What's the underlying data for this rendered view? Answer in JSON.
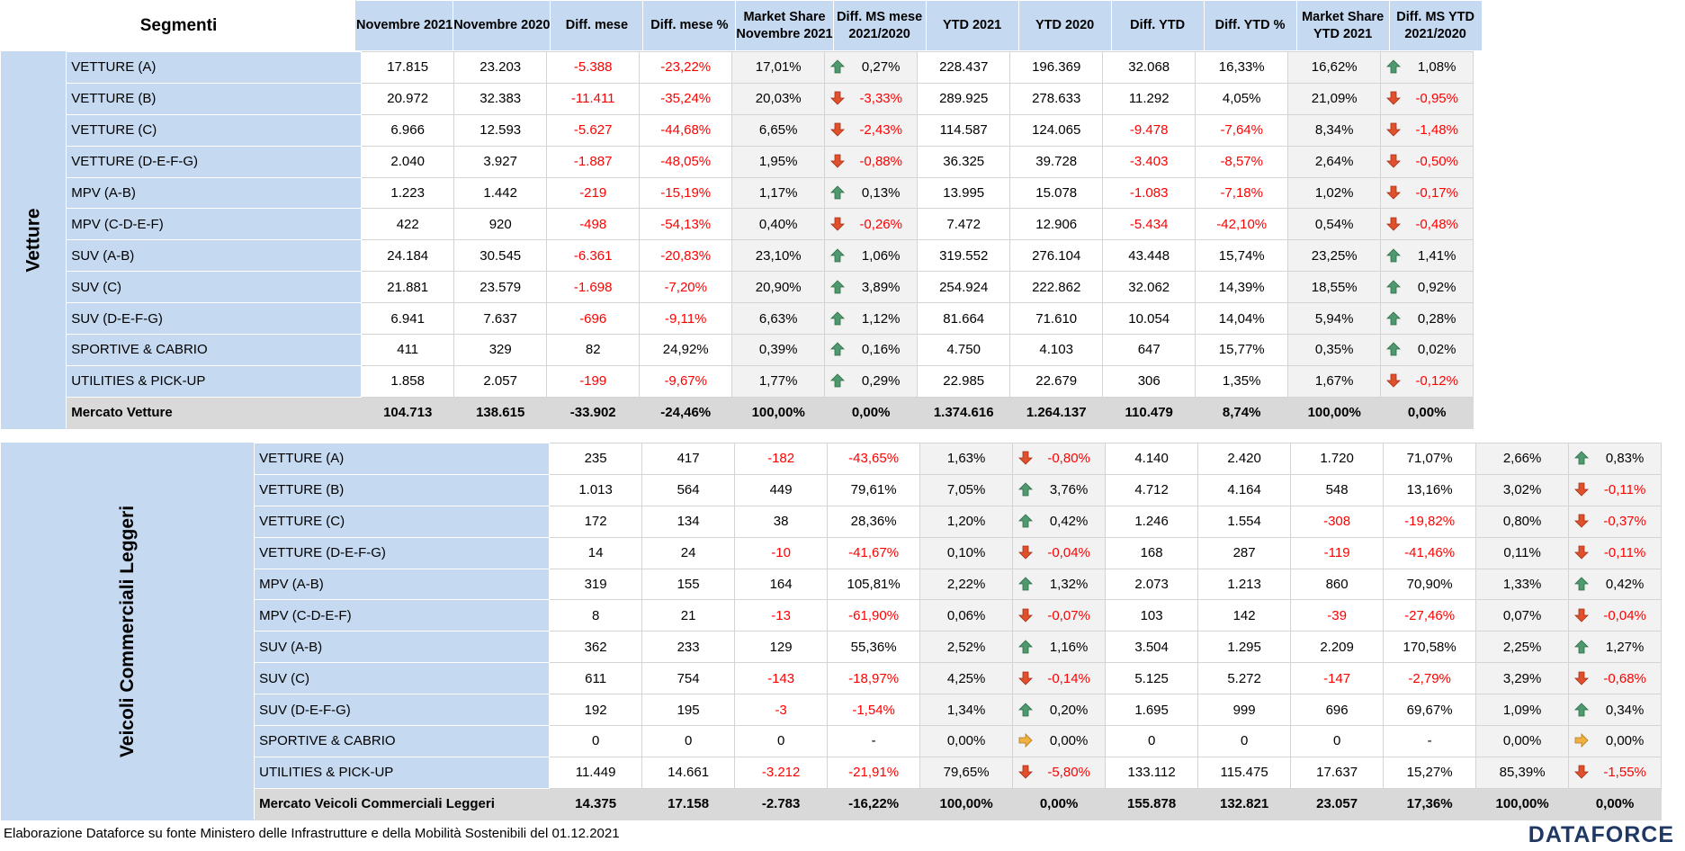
{
  "header": {
    "segment": "Segmenti",
    "cols": [
      "Novembre 2021",
      "Novembre 2020",
      "Diff. mese",
      "Diff. mese %",
      "Market Share\nNovembre 2021",
      "Diff. MS mese\n2021/2020",
      "YTD 2021",
      "YTD 2020",
      "Diff. YTD",
      "Diff. YTD %",
      "Market Share\nYTD 2021",
      "Diff. MS YTD\n2021/2020"
    ]
  },
  "colors": {
    "header_bg": "#c5d9f1",
    "negative": "#ff0000",
    "up_arrow": "#4e9a6e",
    "down_arrow": "#e0502a",
    "flat_arrow": "#f0b040",
    "total_bg": "#d9d9d9"
  },
  "groups": [
    {
      "label": "Vetture",
      "rows": [
        {
          "name": "VETTURE (A)",
          "v": [
            "17.815",
            "23.203",
            "-5.388",
            "-23,22%",
            "17,01%",
            "0,27%",
            "228.437",
            "196.369",
            "32.068",
            "16,33%",
            "16,62%",
            "1,08%"
          ],
          "ms_m": "up",
          "ms_y": "up"
        },
        {
          "name": "VETTURE (B)",
          "v": [
            "20.972",
            "32.383",
            "-11.411",
            "-35,24%",
            "20,03%",
            "-3,33%",
            "289.925",
            "278.633",
            "11.292",
            "4,05%",
            "21,09%",
            "-0,95%"
          ],
          "ms_m": "down",
          "ms_y": "down"
        },
        {
          "name": "VETTURE (C)",
          "v": [
            "6.966",
            "12.593",
            "-5.627",
            "-44,68%",
            "6,65%",
            "-2,43%",
            "114.587",
            "124.065",
            "-9.478",
            "-7,64%",
            "8,34%",
            "-1,48%"
          ],
          "ms_m": "down",
          "ms_y": "down"
        },
        {
          "name": "VETTURE (D-E-F-G)",
          "v": [
            "2.040",
            "3.927",
            "-1.887",
            "-48,05%",
            "1,95%",
            "-0,88%",
            "36.325",
            "39.728",
            "-3.403",
            "-8,57%",
            "2,64%",
            "-0,50%"
          ],
          "ms_m": "down",
          "ms_y": "down"
        },
        {
          "name": "MPV (A-B)",
          "v": [
            "1.223",
            "1.442",
            "-219",
            "-15,19%",
            "1,17%",
            "0,13%",
            "13.995",
            "15.078",
            "-1.083",
            "-7,18%",
            "1,02%",
            "-0,17%"
          ],
          "ms_m": "up",
          "ms_y": "down"
        },
        {
          "name": "MPV (C-D-E-F)",
          "v": [
            "422",
            "920",
            "-498",
            "-54,13%",
            "0,40%",
            "-0,26%",
            "7.472",
            "12.906",
            "-5.434",
            "-42,10%",
            "0,54%",
            "-0,48%"
          ],
          "ms_m": "down",
          "ms_y": "down"
        },
        {
          "name": "SUV (A-B)",
          "v": [
            "24.184",
            "30.545",
            "-6.361",
            "-20,83%",
            "23,10%",
            "1,06%",
            "319.552",
            "276.104",
            "43.448",
            "15,74%",
            "23,25%",
            "1,41%"
          ],
          "ms_m": "up",
          "ms_y": "up"
        },
        {
          "name": "SUV (C)",
          "v": [
            "21.881",
            "23.579",
            "-1.698",
            "-7,20%",
            "20,90%",
            "3,89%",
            "254.924",
            "222.862",
            "32.062",
            "14,39%",
            "18,55%",
            "0,92%"
          ],
          "ms_m": "up",
          "ms_y": "up"
        },
        {
          "name": "SUV (D-E-F-G)",
          "v": [
            "6.941",
            "7.637",
            "-696",
            "-9,11%",
            "6,63%",
            "1,12%",
            "81.664",
            "71.610",
            "10.054",
            "14,04%",
            "5,94%",
            "0,28%"
          ],
          "ms_m": "up",
          "ms_y": "up"
        },
        {
          "name": "SPORTIVE & CABRIO",
          "v": [
            "411",
            "329",
            "82",
            "24,92%",
            "0,39%",
            "0,16%",
            "4.750",
            "4.103",
            "647",
            "15,77%",
            "0,35%",
            "0,02%"
          ],
          "ms_m": "up",
          "ms_y": "up"
        },
        {
          "name": "UTILITIES & PICK-UP",
          "v": [
            "1.858",
            "2.057",
            "-199",
            "-9,67%",
            "1,77%",
            "0,29%",
            "22.985",
            "22.679",
            "306",
            "1,35%",
            "1,67%",
            "-0,12%"
          ],
          "ms_m": "up",
          "ms_y": "down"
        }
      ],
      "total": {
        "name": "Mercato Vetture",
        "v": [
          "104.713",
          "138.615",
          "-33.902",
          "-24,46%",
          "100,00%",
          "0,00%",
          "1.374.616",
          "1.264.137",
          "110.479",
          "8,74%",
          "100,00%",
          "0,00%"
        ]
      }
    },
    {
      "label": "Veicoli Commerciali Leggeri",
      "rows": [
        {
          "name": "VETTURE (A)",
          "v": [
            "235",
            "417",
            "-182",
            "-43,65%",
            "1,63%",
            "-0,80%",
            "4.140",
            "2.420",
            "1.720",
            "71,07%",
            "2,66%",
            "0,83%"
          ],
          "ms_m": "down",
          "ms_y": "up"
        },
        {
          "name": "VETTURE (B)",
          "v": [
            "1.013",
            "564",
            "449",
            "79,61%",
            "7,05%",
            "3,76%",
            "4.712",
            "4.164",
            "548",
            "13,16%",
            "3,02%",
            "-0,11%"
          ],
          "ms_m": "up",
          "ms_y": "down"
        },
        {
          "name": "VETTURE (C)",
          "v": [
            "172",
            "134",
            "38",
            "28,36%",
            "1,20%",
            "0,42%",
            "1.246",
            "1.554",
            "-308",
            "-19,82%",
            "0,80%",
            "-0,37%"
          ],
          "ms_m": "up",
          "ms_y": "down"
        },
        {
          "name": "VETTURE (D-E-F-G)",
          "v": [
            "14",
            "24",
            "-10",
            "-41,67%",
            "0,10%",
            "-0,04%",
            "168",
            "287",
            "-119",
            "-41,46%",
            "0,11%",
            "-0,11%"
          ],
          "ms_m": "down",
          "ms_y": "down"
        },
        {
          "name": "MPV (A-B)",
          "v": [
            "319",
            "155",
            "164",
            "105,81%",
            "2,22%",
            "1,32%",
            "2.073",
            "1.213",
            "860",
            "70,90%",
            "1,33%",
            "0,42%"
          ],
          "ms_m": "up",
          "ms_y": "up"
        },
        {
          "name": "MPV (C-D-E-F)",
          "v": [
            "8",
            "21",
            "-13",
            "-61,90%",
            "0,06%",
            "-0,07%",
            "103",
            "142",
            "-39",
            "-27,46%",
            "0,07%",
            "-0,04%"
          ],
          "ms_m": "down",
          "ms_y": "down"
        },
        {
          "name": "SUV (A-B)",
          "v": [
            "362",
            "233",
            "129",
            "55,36%",
            "2,52%",
            "1,16%",
            "3.504",
            "1.295",
            "2.209",
            "170,58%",
            "2,25%",
            "1,27%"
          ],
          "ms_m": "up",
          "ms_y": "up"
        },
        {
          "name": "SUV (C)",
          "v": [
            "611",
            "754",
            "-143",
            "-18,97%",
            "4,25%",
            "-0,14%",
            "5.125",
            "5.272",
            "-147",
            "-2,79%",
            "3,29%",
            "-0,68%"
          ],
          "ms_m": "down",
          "ms_y": "down"
        },
        {
          "name": "SUV (D-E-F-G)",
          "v": [
            "192",
            "195",
            "-3",
            "-1,54%",
            "1,34%",
            "0,20%",
            "1.695",
            "999",
            "696",
            "69,67%",
            "1,09%",
            "0,34%"
          ],
          "ms_m": "up",
          "ms_y": "up"
        },
        {
          "name": "SPORTIVE & CABRIO",
          "v": [
            "0",
            "0",
            "0",
            "-",
            "0,00%",
            "0,00%",
            "0",
            "0",
            "0",
            "-",
            "0,00%",
            "0,00%"
          ],
          "ms_m": "flat",
          "ms_y": "flat"
        },
        {
          "name": "UTILITIES & PICK-UP",
          "v": [
            "11.449",
            "14.661",
            "-3.212",
            "-21,91%",
            "79,65%",
            "-5,80%",
            "133.112",
            "115.475",
            "17.637",
            "15,27%",
            "85,39%",
            "-1,55%"
          ],
          "ms_m": "down",
          "ms_y": "down"
        }
      ],
      "total": {
        "name": "Mercato Veicoli Commerciali Leggeri",
        "v": [
          "14.375",
          "17.158",
          "-2.783",
          "-16,22%",
          "100,00%",
          "0,00%",
          "155.878",
          "132.821",
          "23.057",
          "17,36%",
          "100,00%",
          "0,00%"
        ]
      }
    }
  ],
  "footer": "Elaborazione Dataforce su fonte Ministero delle Infrastrutture e della Mobilità Sostenibili del 01.12.2021",
  "logo": "DATAFORCE"
}
